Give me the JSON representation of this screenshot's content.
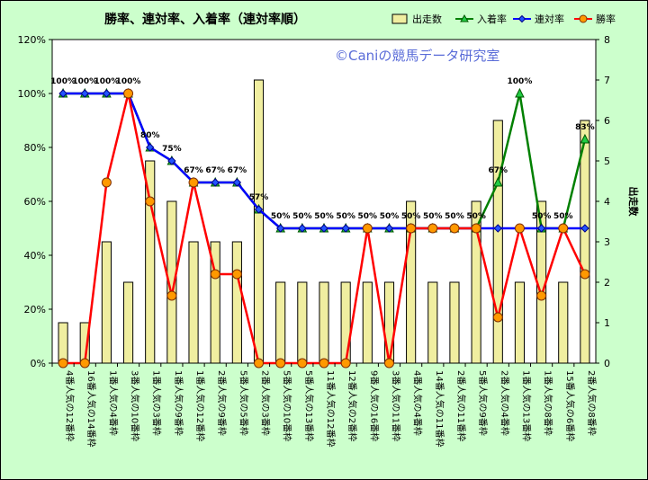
{
  "chart_data": {
    "type": "bar+line",
    "title": "勝率、連対率、入着率（連対率順）",
    "watermark": "©Caniの競馬データ研究室",
    "y2label": "出走数",
    "ylim": [
      0,
      120
    ],
    "y2lim": [
      0,
      8
    ],
    "yticks": [
      "0%",
      "20%",
      "40%",
      "60%",
      "80%",
      "100%",
      "120%"
    ],
    "y2ticks": [
      "0",
      "1",
      "2",
      "3",
      "4",
      "5",
      "6",
      "7",
      "8"
    ],
    "categories": [
      "4番人気の12番枠",
      "16番人気の14番枠",
      "1番人気の4番枠",
      "3番人気の10番枠",
      "1番人気の3番枠",
      "1番人気の9番枠",
      "1番人気の12番枠",
      "2番人気の9番枠",
      "5番人気の5番枠",
      "2番人気の3番枠",
      "5番人気の10番枠",
      "5番人気の13番枠",
      "11番人気の12番枠",
      "12番人気の2番枠",
      "9番人気の16番枠",
      "3番人気の11番枠",
      "4番人気の4番枠",
      "14番人気の11番枠",
      "2番人気の11番枠",
      "5番人気の9番枠",
      "2番人気の4番枠",
      "1番人気の13番枠",
      "1番人気の8番枠",
      "15番人気の6番枠",
      "2番人気の8番枠"
    ],
    "series": [
      {
        "name": "出走数",
        "kind": "bar",
        "axis": "right",
        "color": "#f0eea0",
        "values": [
          1,
          1,
          3,
          2,
          5,
          4,
          3,
          3,
          3,
          7,
          2,
          2,
          2,
          2,
          2,
          2,
          4,
          2,
          2,
          4,
          6,
          2,
          4,
          2,
          6
        ]
      },
      {
        "name": "入着率",
        "kind": "line",
        "axis": "left",
        "color": "#008000",
        "marker": "triangle",
        "values": [
          100,
          100,
          100,
          100,
          80,
          75,
          67,
          67,
          67,
          57,
          50,
          50,
          50,
          50,
          50,
          50,
          50,
          50,
          50,
          50,
          67,
          100,
          50,
          50,
          83
        ]
      },
      {
        "name": "連対率",
        "kind": "line",
        "axis": "left",
        "color": "#0000ff",
        "marker": "diamond",
        "values": [
          100,
          100,
          100,
          100,
          80,
          75,
          67,
          67,
          67,
          57,
          50,
          50,
          50,
          50,
          50,
          50,
          50,
          50,
          50,
          50,
          50,
          50,
          50,
          50,
          50
        ]
      },
      {
        "name": "勝率",
        "kind": "line",
        "axis": "left",
        "color": "#ff0000",
        "marker": "circle",
        "values": [
          0,
          0,
          67,
          100,
          60,
          25,
          67,
          33,
          33,
          0,
          0,
          0,
          0,
          0,
          50,
          0,
          50,
          50,
          50,
          50,
          17,
          50,
          25,
          50,
          33
        ]
      }
    ],
    "data_labels": [
      "100%",
      "100%",
      "100%",
      "100%",
      "80%",
      "75%",
      "67%",
      "67%",
      "67%",
      "57%",
      "50%",
      "50%",
      "50%",
      "50%",
      "50%",
      "50%",
      "50%",
      "50%",
      "50%",
      "50%",
      "67%",
      "100%",
      "50%",
      "50%",
      "83%"
    ],
    "legend_position": "top-right",
    "grid": false
  }
}
